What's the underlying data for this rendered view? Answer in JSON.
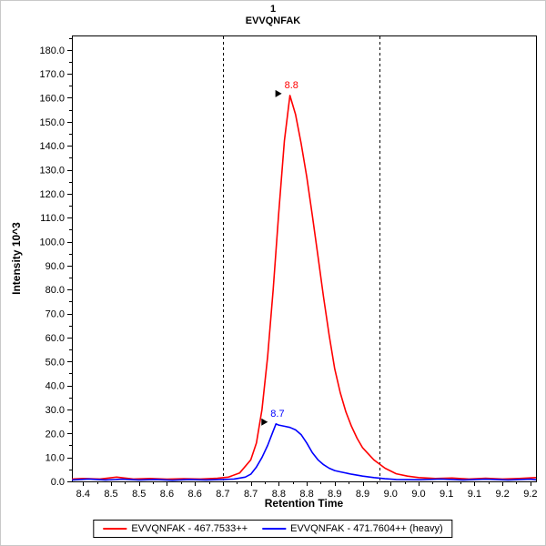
{
  "panel": {
    "title_index": "1",
    "title_peptide": "EVVQNFAK"
  },
  "axes": {
    "x_title": "Retention Time",
    "y_title": "Intensity 10^3"
  },
  "legend": {
    "items": [
      {
        "label": "EVVQNFAK - 467.7533++",
        "color": "#ff0000"
      },
      {
        "label": "EVVQNFAK - 471.7604++ (heavy)",
        "color": "#0000ff"
      }
    ]
  },
  "chart_data": {
    "type": "line",
    "title": "1 EVVQNFAK",
    "xlabel": "Retention Time",
    "ylabel": "Intensity 10^3",
    "xlim": [
      8.38,
      9.21
    ],
    "ylim": [
      0,
      186
    ],
    "grid": false,
    "legend_position": "bottom",
    "peak_boundaries": [
      8.65,
      8.93
    ],
    "x_ticks": [
      {
        "v": 8.4,
        "label": "8.4"
      },
      {
        "v": 8.45,
        "label": "8.5"
      },
      {
        "v": 8.5,
        "label": "8.5"
      },
      {
        "v": 8.55,
        "label": "8.6"
      },
      {
        "v": 8.6,
        "label": "8.6"
      },
      {
        "v": 8.65,
        "label": "8.7"
      },
      {
        "v": 8.7,
        "label": "8.7"
      },
      {
        "v": 8.75,
        "label": "8.8"
      },
      {
        "v": 8.8,
        "label": "8.8"
      },
      {
        "v": 8.85,
        "label": "8.9"
      },
      {
        "v": 8.9,
        "label": "8.9"
      },
      {
        "v": 8.95,
        "label": "9.0"
      },
      {
        "v": 9.0,
        "label": "9.0"
      },
      {
        "v": 9.05,
        "label": "9.1"
      },
      {
        "v": 9.1,
        "label": "9.1"
      },
      {
        "v": 9.15,
        "label": "9.2"
      },
      {
        "v": 9.2,
        "label": "9.2"
      }
    ],
    "y_ticks": [
      {
        "v": 0,
        "label": "0.0"
      },
      {
        "v": 10,
        "label": "10.0"
      },
      {
        "v": 20,
        "label": "20.0"
      },
      {
        "v": 30,
        "label": "30.0"
      },
      {
        "v": 40,
        "label": "40.0"
      },
      {
        "v": 50,
        "label": "50.0"
      },
      {
        "v": 60,
        "label": "60.0"
      },
      {
        "v": 70,
        "label": "70.0"
      },
      {
        "v": 80,
        "label": "80.0"
      },
      {
        "v": 90,
        "label": "90.0"
      },
      {
        "v": 100,
        "label": "100.0"
      },
      {
        "v": 110,
        "label": "110.0"
      },
      {
        "v": 120,
        "label": "120.0"
      },
      {
        "v": 130,
        "label": "130.0"
      },
      {
        "v": 140,
        "label": "140.0"
      },
      {
        "v": 150,
        "label": "150.0"
      },
      {
        "v": 160,
        "label": "160.0"
      },
      {
        "v": 170,
        "label": "170.0"
      },
      {
        "v": 180,
        "label": "180.0"
      }
    ],
    "series": [
      {
        "name": "EVVQNFAK - 467.7533++",
        "color": "#ff0000",
        "peak_annotation": {
          "label": "8.8",
          "x": 8.77,
          "y": 161
        },
        "points": [
          [
            8.38,
            1.0
          ],
          [
            8.4,
            1.2
          ],
          [
            8.43,
            1.0
          ],
          [
            8.46,
            1.8
          ],
          [
            8.49,
            1.0
          ],
          [
            8.52,
            1.2
          ],
          [
            8.55,
            0.9
          ],
          [
            8.58,
            1.1
          ],
          [
            8.61,
            1.0
          ],
          [
            8.64,
            1.3
          ],
          [
            8.66,
            1.8
          ],
          [
            8.68,
            3.5
          ],
          [
            8.7,
            9
          ],
          [
            8.71,
            16
          ],
          [
            8.72,
            30
          ],
          [
            8.73,
            52
          ],
          [
            8.74,
            80
          ],
          [
            8.75,
            112
          ],
          [
            8.76,
            142
          ],
          [
            8.77,
            161
          ],
          [
            8.78,
            153
          ],
          [
            8.79,
            141
          ],
          [
            8.8,
            127
          ],
          [
            8.81,
            111
          ],
          [
            8.82,
            94
          ],
          [
            8.83,
            77
          ],
          [
            8.84,
            61
          ],
          [
            8.85,
            47
          ],
          [
            8.86,
            37
          ],
          [
            8.87,
            29
          ],
          [
            8.88,
            23
          ],
          [
            8.89,
            18
          ],
          [
            8.9,
            14
          ],
          [
            8.92,
            9
          ],
          [
            8.94,
            5.5
          ],
          [
            8.96,
            3.2
          ],
          [
            8.98,
            2.2
          ],
          [
            9.0,
            1.6
          ],
          [
            9.03,
            1.2
          ],
          [
            9.06,
            1.4
          ],
          [
            9.09,
            1.0
          ],
          [
            9.12,
            1.3
          ],
          [
            9.15,
            1.0
          ],
          [
            9.18,
            1.2
          ],
          [
            9.21,
            1.6
          ]
        ]
      },
      {
        "name": "EVVQNFAK - 471.7604++ (heavy)",
        "color": "#0000ff",
        "peak_annotation": {
          "label": "8.7",
          "x": 8.745,
          "y": 24
        },
        "points": [
          [
            8.38,
            0.6
          ],
          [
            8.41,
            1.0
          ],
          [
            8.44,
            0.6
          ],
          [
            8.47,
            0.9
          ],
          [
            8.5,
            0.6
          ],
          [
            8.53,
            0.8
          ],
          [
            8.56,
            0.5
          ],
          [
            8.59,
            0.8
          ],
          [
            8.62,
            0.6
          ],
          [
            8.65,
            0.8
          ],
          [
            8.67,
            1.0
          ],
          [
            8.69,
            1.8
          ],
          [
            8.7,
            3
          ],
          [
            8.71,
            6
          ],
          [
            8.72,
            10
          ],
          [
            8.73,
            15
          ],
          [
            8.74,
            21
          ],
          [
            8.745,
            24
          ],
          [
            8.75,
            23.5
          ],
          [
            8.76,
            23
          ],
          [
            8.77,
            22.5
          ],
          [
            8.78,
            21.5
          ],
          [
            8.79,
            19.5
          ],
          [
            8.8,
            16
          ],
          [
            8.81,
            12
          ],
          [
            8.82,
            9
          ],
          [
            8.83,
            7
          ],
          [
            8.84,
            5.5
          ],
          [
            8.85,
            4.5
          ],
          [
            8.86,
            4.0
          ],
          [
            8.88,
            3.0
          ],
          [
            8.9,
            2.2
          ],
          [
            8.92,
            1.6
          ],
          [
            8.94,
            1.1
          ],
          [
            8.96,
            0.8
          ],
          [
            9.0,
            0.7
          ],
          [
            9.04,
            1.0
          ],
          [
            9.08,
            0.6
          ],
          [
            9.12,
            0.9
          ],
          [
            9.16,
            0.6
          ],
          [
            9.2,
            0.9
          ],
          [
            9.21,
            0.7
          ]
        ]
      }
    ]
  }
}
